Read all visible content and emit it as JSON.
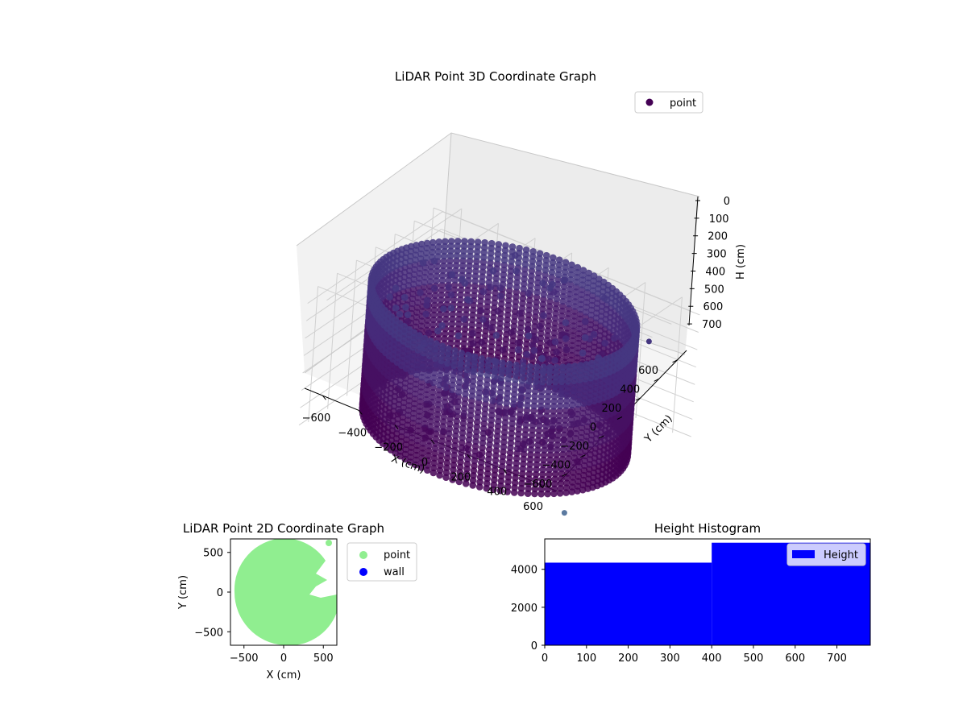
{
  "colors": {
    "point3d": "#440154",
    "point2d": "#90ee90",
    "wall": "#0000ff",
    "hist": "#0000ff",
    "pane_light": "#f2f2f2",
    "pane_dark": "#e6e6e6",
    "grid": "#d0d0d0"
  },
  "chart_data": [
    {
      "type": "scatter",
      "title": "LiDAR Point 3D Coordinate Graph",
      "xlabel": "X (cm)",
      "ylabel": "Y (cm)",
      "zlabel": "H (cm)",
      "legend": [
        "point"
      ],
      "legend_position": "top-right",
      "xlim": [
        -700,
        700
      ],
      "ylim": [
        -700,
        700
      ],
      "zlim": [
        0,
        760
      ],
      "z_inverted": true,
      "xticks": [
        "−600",
        "−400",
        "−200",
        "0",
        "200",
        "400",
        "600"
      ],
      "yticks": [
        "600",
        "400",
        "200",
        "0",
        "−200",
        "−400",
        "−600"
      ],
      "zticks": [
        "0",
        "100",
        "200",
        "300",
        "400",
        "500",
        "600",
        "700"
      ],
      "grid": true,
      "series": [
        {
          "name": "point",
          "description_of_shape": "cylindrical wall of points, radius about 640 cm, height 0-740 cm, with interior clutter points",
          "wall_radius": 640,
          "wall_height": [
            0,
            740
          ],
          "outliers": [
            {
              "x": 660,
              "y": 250,
              "z": 700
            },
            {
              "x": 640,
              "y": -50,
              "z": 700
            },
            {
              "x": 650,
              "y": -520,
              "z": 0
            }
          ]
        }
      ]
    },
    {
      "type": "scatter",
      "title": "LiDAR Point 2D Coordinate Graph",
      "xlabel": "X (cm)",
      "ylabel": "Y (cm)",
      "xlim": [
        -670,
        670
      ],
      "ylim": [
        -670,
        670
      ],
      "xticks": [
        "−500",
        "0",
        "500"
      ],
      "yticks": [
        "500",
        "0",
        "−500"
      ],
      "legend": [
        "point",
        "wall"
      ],
      "legend_position": "outside-right",
      "grid": false,
      "series": [
        {
          "name": "point",
          "description_of_shape": "filled disc of radius about 640 cm, notch on the right side near y=0"
        },
        {
          "name": "wall",
          "points": []
        }
      ]
    },
    {
      "type": "bar",
      "title": "Height Histogram",
      "legend": [
        "Height"
      ],
      "legend_position": "top-right",
      "xlim": [
        0,
        780
      ],
      "ylim": [
        0,
        5600
      ],
      "xticks": [
        "0",
        "100",
        "200",
        "300",
        "400",
        "500",
        "600",
        "700"
      ],
      "yticks": [
        "0",
        "2000",
        "4000"
      ],
      "grid": false,
      "series": [
        {
          "name": "Height",
          "bins": [
            {
              "x0": 0,
              "x1": 400,
              "value": 4350
            },
            {
              "x0": 400,
              "x1": 780,
              "value": 5400
            }
          ]
        }
      ]
    }
  ]
}
